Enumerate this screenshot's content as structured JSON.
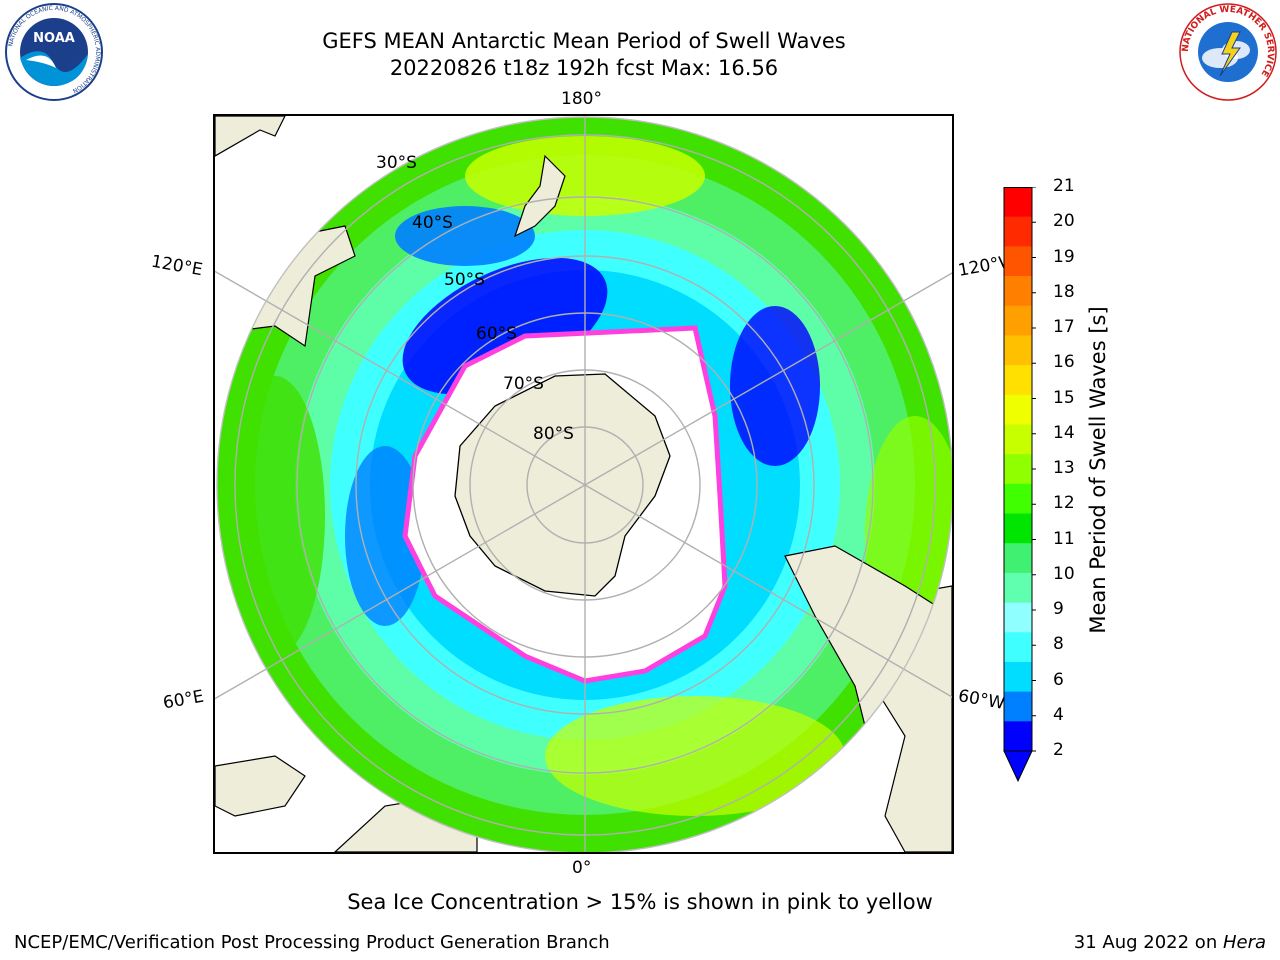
{
  "title_line1": "GEFS MEAN Antarctic Mean Period of Swell Waves",
  "title_line2": "20220826 t18z 192h fcst   Max: 16.56",
  "lon_labels": {
    "top": "180°",
    "bottom": "0°",
    "left_upper": "120°E",
    "left_lower": "60°E",
    "right_upper": "120°W",
    "right_lower": "60°W"
  },
  "lat_labels": [
    "30°S",
    "40°S",
    "50°S",
    "60°S",
    "70°S",
    "80°S"
  ],
  "colorbar": {
    "title": "Mean Period of Swell Waves [s]",
    "ticks": [
      "21",
      "20",
      "19",
      "18",
      "17",
      "16",
      "15",
      "14",
      "13",
      "12",
      "11",
      "10",
      "9",
      "8",
      "6",
      "4",
      "2"
    ],
    "colors": [
      "#ff0000",
      "#ff2a00",
      "#ff5500",
      "#ff7f00",
      "#ffa000",
      "#ffc000",
      "#ffe000",
      "#f0ff00",
      "#c8ff00",
      "#90ff00",
      "#40ff00",
      "#00e600",
      "#40f070",
      "#60ffb0",
      "#90ffff",
      "#40ffff",
      "#00ddff",
      "#0080ff",
      "#0000ff"
    ],
    "extend_color": "#0000ff"
  },
  "note": "Sea Ice Concentration > 15% is shown in pink to yellow",
  "footer": {
    "left": "NCEP/EMC/Verification Post Processing Product Generation Branch",
    "right_prefix": "31 Aug 2022 on ",
    "right_host": "Hera"
  },
  "logos": {
    "noaa_text": "NOAA",
    "noaa_ring": "NATIONAL OCEANIC AND ATMOSPHERIC ADMINISTRATION",
    "noaa_ring_bottom": "U.S. DEPARTMENT OF COMMERCE",
    "nws_ring": "NATIONAL WEATHER SERVICE"
  }
}
